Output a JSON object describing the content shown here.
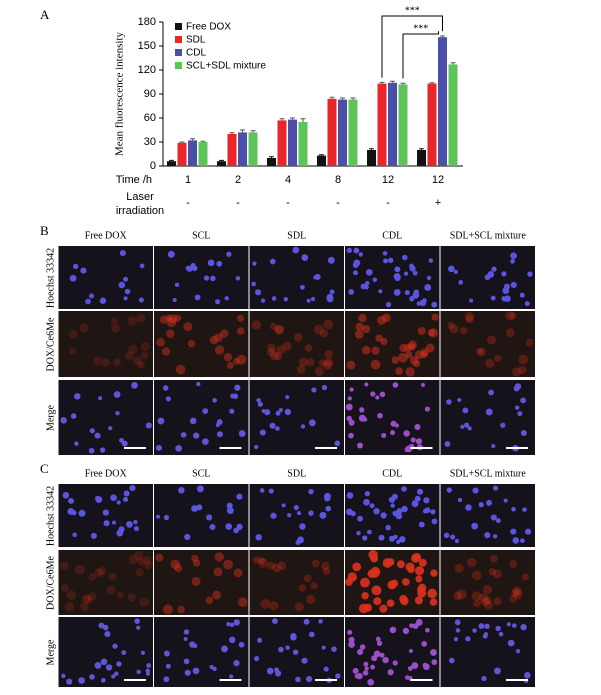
{
  "chart_data": {
    "type": "bar",
    "panel_label": "A",
    "ylabel": "Mean fluorescence intensity",
    "xlabel": "Time /h",
    "categories": [
      "1",
      "2",
      "4",
      "8",
      "12",
      "12"
    ],
    "laser_label": [
      "Laser",
      "irradiation"
    ],
    "laser": [
      "-",
      "-",
      "-",
      "-",
      "-",
      "+"
    ],
    "series": [
      {
        "name": "Free DOX",
        "color": "#111111",
        "values": [
          6,
          6,
          10,
          13,
          20,
          20
        ],
        "errors": [
          1,
          1,
          1.5,
          1,
          1.5,
          1.5
        ]
      },
      {
        "name": "SDL",
        "color": "#e8262a",
        "values": [
          29,
          40,
          57,
          84,
          103,
          103
        ],
        "errors": [
          1,
          1.5,
          2,
          2,
          1.5,
          1
        ]
      },
      {
        "name": "CDL",
        "color": "#4a4fa8",
        "values": [
          32,
          42,
          58,
          83,
          104,
          161
        ],
        "errors": [
          2,
          3,
          2,
          2,
          2,
          1.5
        ]
      },
      {
        "name": "SCL+SDL mixture",
        "color": "#5ec45a",
        "values": [
          30,
          42,
          55,
          83,
          102,
          127
        ],
        "errors": [
          1,
          2,
          4,
          2,
          1.5,
          2
        ]
      }
    ],
    "ylim": [
      0,
      180
    ],
    "yticks": [
      0,
      30,
      60,
      90,
      120,
      150,
      180
    ],
    "annotations": [
      "***",
      "***"
    ]
  },
  "panels": [
    {
      "label": "B",
      "columns": [
        "Free DOX",
        "SCL",
        "SDL",
        "CDL",
        "SDL+SCL mixture"
      ],
      "rows": [
        "Hoechst 33342",
        "DOX/Ce6Me",
        "Merge"
      ]
    },
    {
      "label": "C",
      "columns": [
        "Free DOX",
        "SCL",
        "SDL",
        "CDL",
        "SDL+SCL mixture"
      ],
      "rows": [
        "Hoechst 33342",
        "DOX/Ce6Me",
        "Merge"
      ]
    }
  ]
}
